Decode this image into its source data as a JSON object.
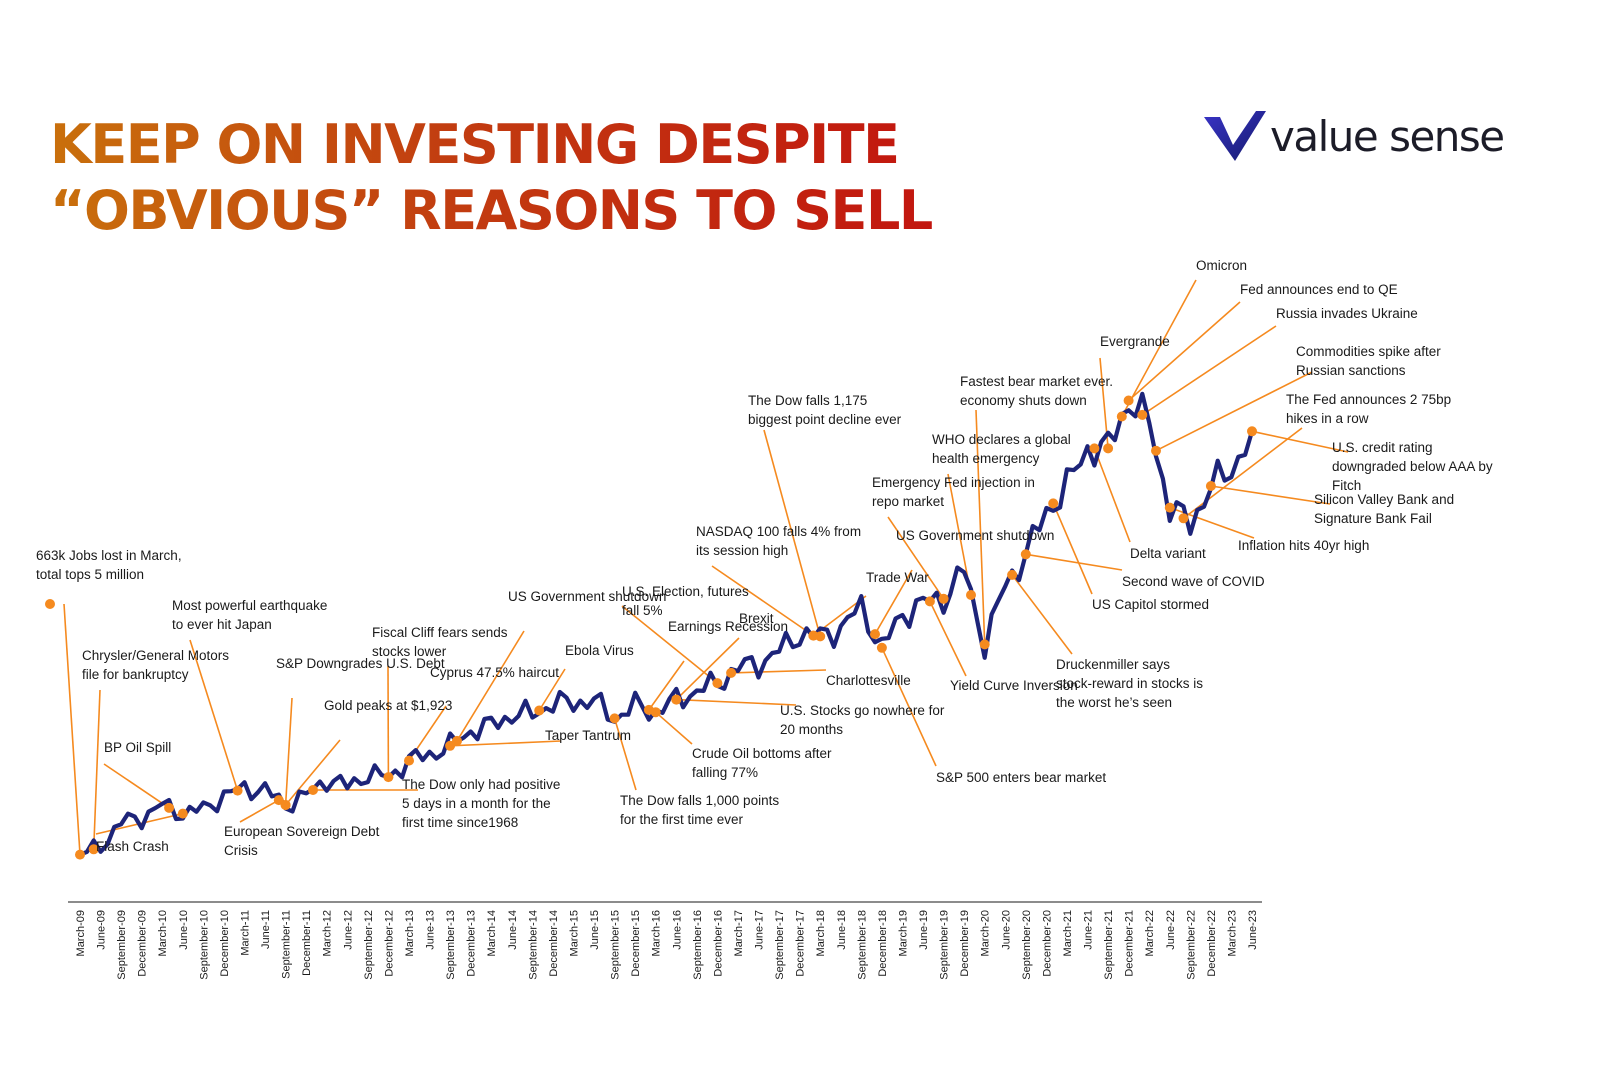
{
  "title": {
    "line1": "KEEP ON INVESTING DESPITE",
    "line2": "“OBVIOUS” REASONS TO SELL"
  },
  "brand": {
    "name": "value sense",
    "accent": "#2a2fb5",
    "text_color": "#1c1c28"
  },
  "colors": {
    "line": "#1d2479",
    "marker": "#f58a1f",
    "leader": "#f58a1f"
  },
  "chart_data": {
    "type": "line",
    "title": "",
    "xlabel": "",
    "ylabel": "",
    "grid": false,
    "legend": "none",
    "x_ticks": [
      "March-09",
      "June-09",
      "September-09",
      "December-09",
      "March-10",
      "June-10",
      "September-10",
      "December-10",
      "March-11",
      "June-11",
      "September-11",
      "December-11",
      "March-12",
      "June-12",
      "September-12",
      "December-12",
      "March-13",
      "June-13",
      "September-13",
      "December-13",
      "March-14",
      "June-14",
      "September-14",
      "December-14",
      "March-15",
      "June-15",
      "September-15",
      "December-15",
      "March-16",
      "June-16",
      "September-16",
      "December-16",
      "March-17",
      "June-17",
      "September-17",
      "December-17",
      "March-18",
      "June-18",
      "September-18",
      "December-18",
      "March-19",
      "June-19",
      "September-19",
      "December-19",
      "March-20",
      "June-20",
      "September-20",
      "December-20",
      "March-21",
      "June-21",
      "September-21",
      "December-21",
      "March-22",
      "June-22",
      "September-22",
      "December-22",
      "March-23",
      "June-23"
    ],
    "series": [
      {
        "values": [
          735,
          805,
          1020,
          1060,
          1170,
          1095,
          1135,
          1250,
          1320,
          1300,
          1170,
          1255,
          1395,
          1335,
          1440,
          1415,
          1560,
          1615,
          1690,
          1820,
          1870,
          1960,
          1970,
          2060,
          2070,
          2085,
          1930,
          2045,
          1985,
          2095,
          2170,
          2240,
          2375,
          2410,
          2520,
          2670,
          2650,
          2720,
          2910,
          2550,
          2840,
          2945,
          2980,
          3230,
          2580,
          3100,
          3370,
          3740,
          3970,
          4300,
          4300,
          4720,
          4530,
          3780,
          3640,
          3970,
          4110,
          4450
        ]
      }
    ],
    "ylim": [
      600,
      4900
    ],
    "annotations": [
      {
        "label": "663k Jobs lost in March, total tops 5 million",
        "date": "March-09"
      },
      {
        "label": "Chrysler/General Motors file for bankruptcy",
        "date": "April-09"
      },
      {
        "label": "BP Oil Spill",
        "date": "April-10"
      },
      {
        "label": "Flash Crash",
        "date": "May-10"
      },
      {
        "label": "Most powerful earthquake to ever hit Japan",
        "date": "March-11"
      },
      {
        "label": "European Sovereign Debt Crisis",
        "date": "August-11"
      },
      {
        "label": "S&P Downgrades U.S. Debt",
        "date": "August-11"
      },
      {
        "label": "Gold peaks at $1,923",
        "date": "September-11"
      },
      {
        "label": "The Dow only had positive 5 days in a month for the first time since1968",
        "date": "November-11"
      },
      {
        "label": "Fiscal Cliff fears sends stocks lower",
        "date": "December-12"
      },
      {
        "label": "Cyprus 47.5% haircut",
        "date": "March-13"
      },
      {
        "label": "Taper Tantrum",
        "date": "June-13"
      },
      {
        "label": "US Government shutdown",
        "date": "October-13"
      },
      {
        "label": "Ebola Virus",
        "date": "October-14"
      },
      {
        "label": "The Dow falls 1,000 points for the first time ever",
        "date": "August-15"
      },
      {
        "label": "Earnings Recession",
        "date": "February-16"
      },
      {
        "label": "Crude Oil bottoms after falling 77%",
        "date": "February-16"
      },
      {
        "label": "U.S. Stocks go nowhere for 20 months",
        "date": "June-16"
      },
      {
        "label": "U.S. Election, futures fall 5%",
        "date": "November-16"
      },
      {
        "label": "Brexit",
        "date": "June-16"
      },
      {
        "label": "NASDAQ 100 falls 4% from its session high",
        "date": "February-18"
      },
      {
        "label": "The Dow falls 1,175 biggest point decline ever",
        "date": "February-18"
      },
      {
        "label": "Charlottesville",
        "date": "August-17"
      },
      {
        "label": "Trade War",
        "date": "March-18"
      },
      {
        "label": "S&P 500 enters bear market",
        "date": "December-18"
      },
      {
        "label": "US Government shutdown",
        "date": "December-18"
      },
      {
        "label": "Emergency Fed injection in repo market",
        "date": "September-19"
      },
      {
        "label": "Yield Curve Inversion",
        "date": "August-19"
      },
      {
        "label": "WHO declares a global health emergency",
        "date": "January-20"
      },
      {
        "label": "Fastest bear market ever. economy shuts down",
        "date": "March-20"
      },
      {
        "label": "Druckenmiller says stock-reward in stocks is the worst he’s seen",
        "date": "May-20"
      },
      {
        "label": "US Capitol stormed",
        "date": "January-21"
      },
      {
        "label": "Second wave of COVID",
        "date": "October-20"
      },
      {
        "label": "Delta variant",
        "date": "July-21"
      },
      {
        "label": "Evergrande",
        "date": "September-21"
      },
      {
        "label": "Omicron",
        "date": "November-21"
      },
      {
        "label": "Fed announces end to QE",
        "date": "December-21"
      },
      {
        "label": "Russia invades Ukraine",
        "date": "February-22"
      },
      {
        "label": "Commodities spike after Russian sanctions",
        "date": "March-22"
      },
      {
        "label": "The Fed announces 2 75bp hikes in a row",
        "date": "June-22"
      },
      {
        "label": "Inflation hits 40yr high",
        "date": "June-22"
      },
      {
        "label": "Silicon Valley Bank and Signature Bank Fail",
        "date": "March-23"
      },
      {
        "label": "U.S. credit rating downgraded below AAA by Fitch",
        "date": "August-23"
      }
    ]
  }
}
